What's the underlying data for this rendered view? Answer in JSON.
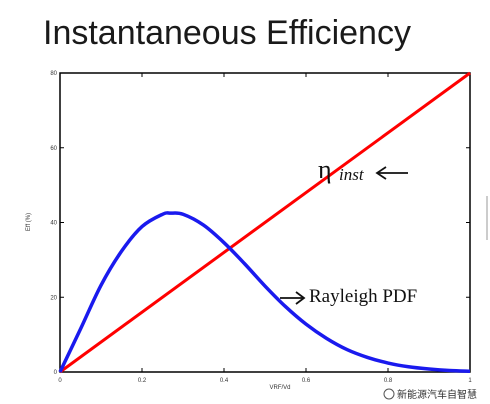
{
  "chart_data": {
    "type": "line",
    "title": "Instantaneous Efficiency",
    "xlabel": "VRF/Vd",
    "ylabel": "Eff (%)",
    "xlim": [
      0,
      1
    ],
    "ylim": [
      0,
      80
    ],
    "x_ticks": [
      "0",
      "0.2",
      "0.4",
      "0.6",
      "0.8",
      "1"
    ],
    "y_ticks": [
      "0",
      "20",
      "40",
      "60",
      "80"
    ],
    "grid": false,
    "series": [
      {
        "name": "η inst",
        "color": "#ff0000",
        "x": [
          0,
          1
        ],
        "y": [
          0,
          80
        ]
      },
      {
        "name": "Rayleigh PDF",
        "color": "#0000ee",
        "x": [
          0,
          0.05,
          0.1,
          0.15,
          0.2,
          0.25,
          0.27,
          0.3,
          0.35,
          0.4,
          0.45,
          0.5,
          0.55,
          0.6,
          0.65,
          0.7,
          0.75,
          0.8,
          0.85,
          0.9,
          0.95,
          1.0
        ],
        "y": [
          0,
          11.5,
          23.2,
          32.3,
          38.9,
          42.2,
          42.5,
          42.2,
          39.3,
          34.6,
          29.0,
          23.0,
          17.5,
          12.8,
          9.0,
          6.0,
          3.9,
          2.4,
          1.4,
          0.8,
          0.4,
          0.2
        ]
      }
    ],
    "annotations": {
      "eta_symbol": "η",
      "eta_subscript": "inst",
      "rayleigh": "Rayleigh PDF"
    }
  },
  "watermark": {
    "text": "新能源汽车自智慧"
  }
}
